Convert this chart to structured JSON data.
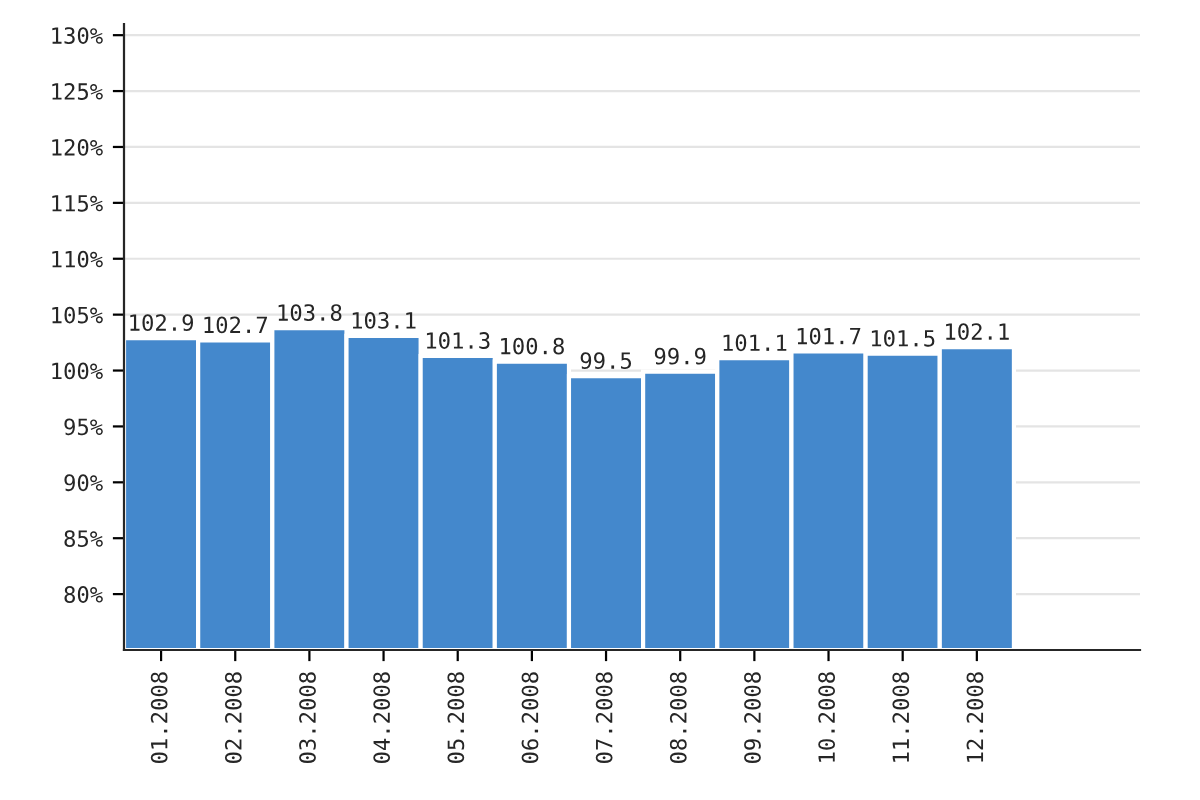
{
  "chart_data": {
    "type": "bar",
    "categories": [
      "01.2008",
      "02.2008",
      "03.2008",
      "04.2008",
      "05.2008",
      "06.2008",
      "07.2008",
      "08.2008",
      "09.2008",
      "10.2008",
      "11.2008",
      "12.2008"
    ],
    "values": [
      102.9,
      102.7,
      103.8,
      103.1,
      101.3,
      100.8,
      99.5,
      99.9,
      101.1,
      101.7,
      101.5,
      102.1
    ],
    "color": "#4488cc",
    "ylim": [
      75,
      131
    ],
    "yticks": [
      {
        "value": 80,
        "label": "80%"
      },
      {
        "value": 85,
        "label": "85%"
      },
      {
        "value": 90,
        "label": "90%"
      },
      {
        "value": 95,
        "label": "95%"
      },
      {
        "value": 100,
        "label": "100%"
      },
      {
        "value": 105,
        "label": "105%"
      },
      {
        "value": 110,
        "label": "110%"
      },
      {
        "value": 115,
        "label": "115%"
      },
      {
        "value": 120,
        "label": "120%"
      },
      {
        "value": 125,
        "label": "125%"
      },
      {
        "value": 130,
        "label": "130%"
      }
    ],
    "grid": "y",
    "data_labels": true
  }
}
